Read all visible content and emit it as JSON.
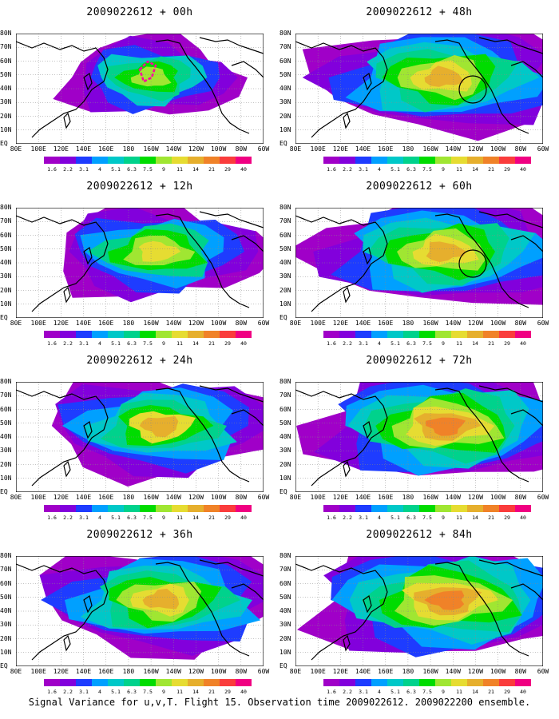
{
  "panels": [
    {
      "title": "2009022612 + 00h",
      "level": 0.35,
      "contour": true,
      "circle": false
    },
    {
      "title": "2009022612 + 12h",
      "level": 0.55,
      "contour": false,
      "circle": false
    },
    {
      "title": "2009022612 + 24h",
      "level": 0.65,
      "contour": false,
      "circle": false
    },
    {
      "title": "2009022612 + 36h",
      "level": 0.7,
      "contour": false,
      "circle": false
    },
    {
      "title": "2009022612 + 48h",
      "level": 0.75,
      "contour": false,
      "circle": true
    },
    {
      "title": "2009022612 + 60h",
      "level": 0.78,
      "contour": false,
      "circle": true
    },
    {
      "title": "2009022612 + 72h",
      "level": 0.82,
      "contour": false,
      "circle": false
    },
    {
      "title": "2009022612 + 84h",
      "level": 0.88,
      "contour": false,
      "circle": false
    }
  ],
  "lat_labels": [
    "80N",
    "70N",
    "60N",
    "50N",
    "40N",
    "30N",
    "20N",
    "10N",
    "EQ"
  ],
  "lon_labels": [
    "80E",
    "100E",
    "120E",
    "140E",
    "160E",
    "180",
    "160W",
    "140W",
    "120W",
    "100W",
    "80W",
    "60W"
  ],
  "colorbar": {
    "labels": [
      "1.6",
      "2.2",
      "3.1",
      "4",
      "5.1",
      "6.3",
      "7.5",
      "9",
      "11",
      "14",
      "21",
      "29",
      "40"
    ],
    "colors": [
      "#a000c8",
      "#8200dc",
      "#1e3cff",
      "#00a0ff",
      "#00c8c8",
      "#00d28c",
      "#00dc00",
      "#a0e632",
      "#e6dc32",
      "#e6af2d",
      "#f08228",
      "#fa3c3c",
      "#f00082"
    ]
  },
  "footer": "Signal Variance for u,v,T. Flight 15. Observation time 2009022612. 2009022200 ensemble."
}
